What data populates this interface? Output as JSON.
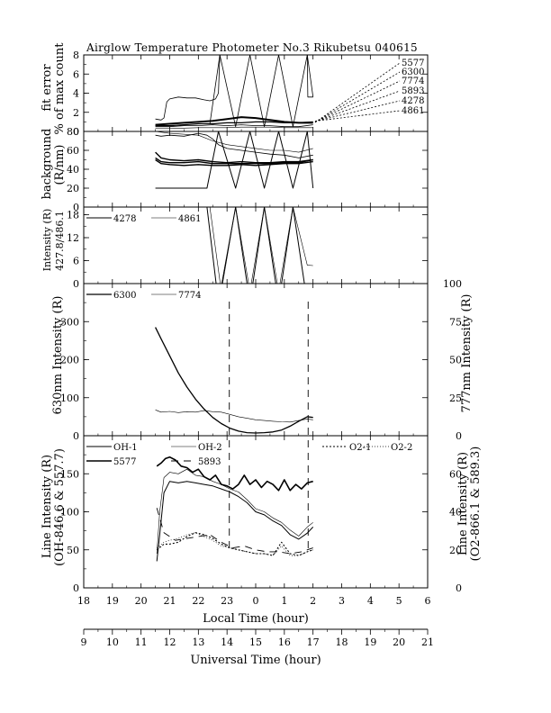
{
  "title": "Airglow Temperature Photometer No.3   Rikubetsu   040615",
  "chart_data": {
    "type": "line",
    "x_local": {
      "label": "Local Time (hour)",
      "ticks": [
        "18",
        "19",
        "20",
        "21",
        "22",
        "23",
        "0",
        "1",
        "2",
        "3",
        "4",
        "5",
        "6"
      ],
      "range": [
        18,
        30
      ]
    },
    "x_ut": {
      "label": "Universal Time (hour)",
      "ticks": [
        "9",
        "10",
        "11",
        "12",
        "13",
        "14",
        "15",
        "16",
        "17",
        "18",
        "19",
        "20",
        "21"
      ],
      "range": [
        9,
        21
      ]
    },
    "markers_ut": [
      14.08,
      16.83
    ],
    "panels": [
      {
        "id": "fit_error",
        "ylabel": "fit error",
        "ylabel2": "% of max count",
        "ylim": [
          0,
          8
        ],
        "yticks": [
          "0",
          "2",
          "4",
          "6",
          "8"
        ],
        "legend": [
          "5577",
          "6300",
          "7774",
          "5893",
          "4278",
          "4861"
        ],
        "series": [
          {
            "name": "5577",
            "width": 0.8,
            "x": [
              11.5,
              11.7,
              11.8,
              11.9,
              12.0,
              12.3,
              12.6,
              12.9,
              13.2,
              13.4,
              13.6,
              13.7,
              13.75
            ],
            "y": [
              1.3,
              1.2,
              1.4,
              3.1,
              3.4,
              3.6,
              3.5,
              3.5,
              3.3,
              3.2,
              3.4,
              4.0,
              8.0
            ]
          },
          {
            "name": "5577-cont",
            "width": 0.8,
            "x": [
              13.75,
              16.8,
              16.82,
              17.0
            ],
            "y": [
              8.0,
              8.0,
              3.6,
              3.6
            ]
          },
          {
            "name": "6300",
            "width": 0.8,
            "x": [
              13.4,
              13.75,
              14.3,
              14.8,
              15.3,
              15.8,
              16.3,
              16.8,
              17.0
            ],
            "y": [
              0.8,
              8.0,
              0.5,
              8.0,
              0.5,
              8.0,
              0.5,
              8.0,
              3.6
            ]
          },
          {
            "name": "7774",
            "width": 0.8,
            "x": [
              11.5,
              12.0,
              12.5,
              13.0,
              13.5,
              14.0,
              14.5,
              15.0,
              15.5,
              16.0,
              16.5,
              17.0
            ],
            "y": [
              0.5,
              0.5,
              0.6,
              0.6,
              0.7,
              0.6,
              0.7,
              0.6,
              0.6,
              0.5,
              0.5,
              0.7
            ]
          },
          {
            "name": "5893",
            "width": 2.0,
            "x": [
              11.5,
              12.0,
              12.5,
              13.0,
              13.5,
              14.0,
              14.5,
              15.0,
              15.5,
              16.0,
              16.5,
              17.0
            ],
            "y": [
              0.7,
              0.8,
              0.9,
              1.0,
              1.1,
              1.3,
              1.5,
              1.4,
              1.2,
              1.0,
              0.9,
              0.9
            ]
          },
          {
            "name": "4278",
            "width": 1.2,
            "x": [
              11.5,
              12.0,
              12.5,
              13.0,
              13.5,
              14.0,
              14.5,
              15.0,
              15.5,
              16.0,
              16.5,
              17.0
            ],
            "y": [
              0.6,
              0.6,
              0.7,
              0.8,
              0.8,
              0.9,
              0.9,
              1.0,
              1.0,
              0.9,
              0.9,
              1.0
            ]
          },
          {
            "name": "4861",
            "width": 0.6,
            "x": [
              11.5,
              12.0,
              12.5,
              13.0,
              13.5,
              14.0,
              14.5,
              15.0,
              15.5,
              16.0,
              16.5,
              17.0
            ],
            "y": [
              0.3,
              0.3,
              0.35,
              0.4,
              0.4,
              0.4,
              0.45,
              0.45,
              0.45,
              0.4,
              0.4,
              0.4
            ]
          }
        ]
      },
      {
        "id": "background",
        "ylabel": "background",
        "ylabel2": "(R/nm)",
        "ylim": [
          0,
          80
        ],
        "yticks": [
          "0",
          "20",
          "40",
          "60",
          "80"
        ],
        "series": [
          {
            "name": "bg-1",
            "width": 0.8,
            "x": [
              11.5,
              11.7,
              12.0,
              12.5,
              13.0,
              13.3,
              13.5,
              13.7,
              14.0,
              14.5,
              15.0,
              15.5,
              16.0,
              16.5,
              17.0
            ],
            "y": [
              76,
              75,
              76,
              75,
              78,
              76,
              72,
              66,
              62,
              60,
              58,
              56,
              55,
              52,
              55
            ]
          },
          {
            "name": "bg-2",
            "width": 1.4,
            "x": [
              11.5,
              11.7,
              12.0,
              12.5,
              13.0,
              13.5,
              14.0,
              14.5,
              15.0,
              15.5,
              16.0,
              16.5,
              17.0
            ],
            "y": [
              58,
              52,
              50,
              49,
              50,
              48,
              47,
              48,
              47,
              47,
              48,
              48,
              50
            ]
          },
          {
            "name": "bg-3",
            "width": 1.4,
            "x": [
              11.5,
              11.7,
              12.0,
              12.5,
              13.0,
              13.5,
              14.0,
              14.5,
              15.0,
              15.5,
              16.0,
              16.5,
              17.0
            ],
            "y": [
              50,
              46,
              45,
              44,
              45,
              44,
              44,
              45,
              44,
              45,
              46,
              46,
              48
            ]
          },
          {
            "name": "bg-4",
            "width": 1.4,
            "x": [
              11.5,
              11.7,
              12.0,
              12.5,
              13.0,
              13.5,
              14.0,
              14.5,
              15.0,
              15.5,
              16.0,
              16.5,
              17.0
            ],
            "y": [
              52,
              48,
              47,
              47,
              48,
              46,
              46,
              46,
              46,
              46,
              47,
              47,
              50
            ]
          },
          {
            "name": "bg-5",
            "width": 1.0,
            "x": [
              11.5,
              13.3,
              13.7,
              14.3,
              14.8,
              15.3,
              15.8,
              16.3,
              16.8,
              17.0
            ],
            "y": [
              20,
              20,
              80,
              20,
              80,
              20,
              80,
              20,
              80,
              20
            ]
          },
          {
            "name": "bg-6",
            "width": 0.6,
            "x": [
              11.5,
              12.0,
              13.0,
              13.5,
              14.0,
              14.5,
              15.0,
              15.5,
              16.0,
              16.5,
              17.0
            ],
            "y": [
              80,
              78,
              76,
              70,
              66,
              64,
              62,
              60,
              60,
              58,
              62
            ]
          }
        ]
      },
      {
        "id": "intensity_blue",
        "ylabel": "Intensity (R)",
        "ylabel2": "427.8/486.1",
        "ylim": [
          0,
          20
        ],
        "yticks": [
          "0",
          "6",
          "12",
          "18"
        ],
        "legend": [
          "4278",
          "4861"
        ],
        "series": [
          {
            "name": "4278",
            "width": 1.0,
            "x": [
              11.5,
              13.3,
              13.7,
              14.3,
              14.8,
              15.3,
              15.8,
              16.3,
              16.8
            ],
            "y": [
              20,
              20,
              -5,
              20,
              -5,
              20,
              -5,
              20,
              -5
            ]
          },
          {
            "name": "4861",
            "width": 0.6,
            "x": [
              11.5,
              13.4,
              13.8,
              14.3,
              14.8,
              15.3,
              15.8,
              16.3,
              16.8,
              17.0
            ],
            "y": [
              20,
              20,
              -2,
              20,
              -2,
              20,
              -2,
              20,
              4.8,
              4.7
            ]
          }
        ]
      },
      {
        "id": "red_line",
        "ylabel": "630nm Intensity (R)",
        "ylim": [
          0,
          400
        ],
        "yticks": [
          "0",
          "100",
          "200",
          "300"
        ],
        "ylabel_right": "777nm Intensity (R)",
        "ylim_right": [
          0,
          100
        ],
        "yticks_right": [
          "0",
          "25",
          "50",
          "75",
          "100"
        ],
        "legend": [
          "6300",
          "7774"
        ],
        "series": [
          {
            "name": "6300",
            "width": 1.3,
            "x": [
              11.5,
              11.7,
              12.0,
              12.3,
              12.6,
              12.9,
              13.2,
              13.5,
              13.8,
              14.1,
              14.4,
              14.7,
              15.0,
              15.3,
              15.6,
              15.9,
              16.2,
              16.5,
              16.8,
              17.0
            ],
            "y": [
              285,
              255,
              210,
              165,
              128,
              96,
              70,
              48,
              32,
              20,
              12,
              8,
              7,
              8,
              10,
              15,
              25,
              38,
              50,
              48
            ]
          },
          {
            "name": "7774",
            "width": 0.6,
            "x": [
              11.5,
              11.7,
              12.0,
              12.3,
              12.6,
              12.9,
              13.2,
              13.5,
              13.8,
              14.1,
              14.4,
              14.7,
              15.0,
              15.3,
              15.6,
              15.9,
              16.2,
              16.5,
              16.8,
              17.0
            ],
            "y": [
              17,
              15.5,
              16,
              15.2,
              15.8,
              15.5,
              16.5,
              15.8,
              15.5,
              14,
              12.5,
              11.5,
              10.5,
              10,
              9.5,
              9.2,
              9.0,
              10,
              11,
              10.5
            ]
          }
        ]
      },
      {
        "id": "line_intensity",
        "ylabel": "Line Intensity (R)",
        "ylabel2": "(OH-846.6 & 557.7)",
        "ylim": [
          0,
          200
        ],
        "yticks": [
          "0",
          "50",
          "100",
          "150"
        ],
        "ylabel_right": "Line Intensity (R)",
        "ylabel_right2": "(O2-866.1 & 589.3)",
        "ylim_right": [
          0,
          80
        ],
        "yticks_right": [
          "0",
          "20",
          "40",
          "60"
        ],
        "legend": [
          "OH-1",
          "OH-2",
          "O2-1",
          "O2-2",
          "5577",
          "5893"
        ],
        "series": [
          {
            "name": "OH-1",
            "width": 1.0,
            "x": [
              11.55,
              11.65,
              11.8,
              12.0,
              12.3,
              12.6,
              12.9,
              13.2,
              13.5,
              13.8,
              14.1,
              14.4,
              14.7,
              15.0,
              15.3,
              15.6,
              15.9,
              16.2,
              16.5,
              16.8,
              17.0
            ],
            "y": [
              35,
              70,
              125,
              140,
              138,
              140,
              138,
              136,
              134,
              130,
              126,
              120,
              112,
              100,
              96,
              88,
              82,
              70,
              64,
              72,
              80
            ]
          },
          {
            "name": "OH-2",
            "width": 0.6,
            "x": [
              11.55,
              11.65,
              11.8,
              12.0,
              12.3,
              12.6,
              12.9,
              13.2,
              13.5,
              13.8,
              14.1,
              14.4,
              14.7,
              15.0,
              15.3,
              15.6,
              15.9,
              16.2,
              16.5,
              16.8,
              17.0
            ],
            "y": [
              45,
              100,
              145,
              152,
              150,
              156,
              148,
              146,
              140,
              136,
              130,
              126,
              116,
              104,
              100,
              92,
              86,
              76,
              68,
              80,
              86
            ]
          },
          {
            "name": "5577",
            "width": 1.6,
            "x": [
              11.55,
              11.7,
              11.85,
              12.0,
              12.2,
              12.4,
              12.6,
              12.8,
              13.0,
              13.2,
              13.4,
              13.6,
              13.8,
              14.0,
              14.2,
              14.4,
              14.6,
              14.8,
              15.0,
              15.2,
              15.4,
              15.6,
              15.8,
              16.0,
              16.2,
              16.4,
              16.6,
              16.8,
              17.0
            ],
            "y": [
              160,
              164,
              170,
              172,
              168,
              160,
              158,
              152,
              156,
              146,
              142,
              148,
              136,
              134,
              130,
              136,
              148,
              136,
              142,
              132,
              140,
              136,
              128,
              142,
              128,
              136,
              130,
              138,
              140
            ]
          },
          {
            "name": "5893",
            "width": 0.9,
            "dash": "8,6",
            "x": [
              11.55,
              11.8,
              12.2,
              12.6,
              13.0,
              13.4,
              13.8,
              14.2,
              14.6,
              15.0,
              15.4,
              15.8,
              16.2,
              16.6,
              17.0
            ],
            "y": [
              42,
              29,
              25,
              26,
              27,
              28,
              24,
              21,
              22,
              20,
              19,
              19,
              18,
              19,
              21
            ]
          },
          {
            "name": "O2-1",
            "width": 1.1,
            "dash": "2,2",
            "x": [
              11.55,
              11.8,
              12.0,
              12.3,
              12.6,
              12.9,
              13.2,
              13.5,
              13.8,
              14.1,
              14.4,
              14.7,
              15.0,
              15.3,
              15.6,
              15.9,
              16.2,
              16.5,
              16.8,
              17.0
            ],
            "y": [
              20,
              23,
              23,
              24,
              27,
              29,
              28,
              26,
              23,
              21,
              20,
              19,
              18,
              18,
              17,
              24,
              18,
              17,
              19,
              20
            ]
          },
          {
            "name": "O2-2",
            "width": 0.7,
            "dash": "1,2",
            "x": [
              11.55,
              11.8,
              12.0,
              12.3,
              12.6,
              12.9,
              13.2,
              13.5,
              13.8,
              14.1,
              14.4,
              14.7,
              15.0,
              15.3,
              15.6,
              15.9,
              16.2,
              16.5,
              16.8,
              17.0
            ],
            "y": [
              21,
              24,
              25,
              26,
              28,
              29,
              27,
              25,
              22,
              21,
              20,
              19,
              18,
              18,
              17,
              22,
              17,
              17,
              19,
              20
            ]
          }
        ]
      }
    ]
  }
}
